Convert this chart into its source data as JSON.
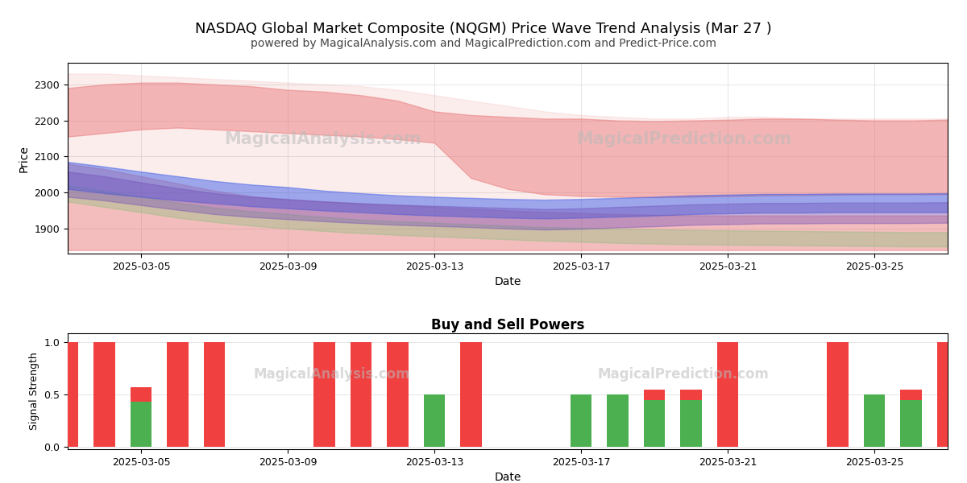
{
  "title": "NASDAQ Global Market Composite (NQGM) Price Wave Trend Analysis (Mar 27 )",
  "subtitle": "powered by MagicalAnalysis.com and MagicalPrediction.com and Predict-Price.com",
  "title_fontsize": 13,
  "subtitle_fontsize": 10,
  "xlabel": "Date",
  "ylabel_top": "Price",
  "ylabel_bottom": "Signal Strength",
  "bottom_title": "Buy and Sell Powers",
  "date_start": "2025-03-03",
  "n_days": 25,
  "price_ylim": [
    1830,
    2360
  ],
  "price_yticks": [
    1900,
    2000,
    2100,
    2200,
    2300
  ],
  "signal_ylim": [
    -0.02,
    1.08
  ],
  "signal_yticks": [
    0.0,
    0.5,
    1.0
  ],
  "background_color": "#ffffff",
  "watermark_color": "#bbbbbb",
  "watermark_alpha": 0.5,
  "red_outer_upper": [
    2330,
    2330,
    2325,
    2320,
    2315,
    2310,
    2305,
    2300,
    2295,
    2285,
    2270,
    2255,
    2240,
    2225,
    2215,
    2210,
    2205,
    2205,
    2210,
    2210,
    2205,
    2205,
    2205,
    2205,
    2205
  ],
  "red_outer_lower": [
    1840,
    1840,
    1840,
    1840,
    1840,
    1840,
    1840,
    1840,
    1840,
    1840,
    1840,
    1840,
    1840,
    1840,
    1840,
    1840,
    1840,
    1840,
    1840,
    1840,
    1840,
    1840,
    1840,
    1840,
    1840
  ],
  "red_upper_band_top": [
    2290,
    2300,
    2305,
    2305,
    2300,
    2295,
    2285,
    2280,
    2270,
    2255,
    2225,
    2215,
    2210,
    2205,
    2205,
    2200,
    2198,
    2200,
    2202,
    2205,
    2205,
    2202,
    2200,
    2200,
    2202
  ],
  "red_upper_band_bot": [
    2155,
    2165,
    2175,
    2180,
    2175,
    2170,
    2165,
    2160,
    2155,
    2148,
    2138,
    2040,
    2010,
    1995,
    1990,
    1988,
    1987,
    1988,
    1990,
    1992,
    1993,
    1994,
    1995,
    1995,
    1995
  ],
  "red_lower_band_top": [
    2080,
    2065,
    2045,
    2025,
    2005,
    1990,
    1980,
    1975,
    1970,
    1965,
    1960,
    1955,
    1950,
    1946,
    1943,
    1940,
    1938,
    1937,
    1936,
    1936,
    1936,
    1936,
    1936,
    1936,
    1936
  ],
  "red_lower_band_bot": [
    1840,
    1840,
    1840,
    1840,
    1840,
    1840,
    1840,
    1840,
    1840,
    1840,
    1840,
    1840,
    1840,
    1840,
    1840,
    1840,
    1840,
    1840,
    1840,
    1840,
    1840,
    1840,
    1840,
    1840,
    1840
  ],
  "blue_upper": [
    2085,
    2072,
    2058,
    2045,
    2032,
    2022,
    2015,
    2005,
    1998,
    1992,
    1988,
    1985,
    1982,
    1980,
    1982,
    1985,
    1988,
    1992,
    1994,
    1996,
    1996,
    1997,
    1997,
    1997,
    1998
  ],
  "blue_lower": [
    2010,
    1998,
    1988,
    1978,
    1970,
    1962,
    1956,
    1950,
    1945,
    1940,
    1936,
    1933,
    1930,
    1928,
    1930,
    1933,
    1936,
    1940,
    1942,
    1944,
    1944,
    1945,
    1945,
    1945,
    1945
  ],
  "purple_upper": [
    2058,
    2045,
    2028,
    2012,
    1998,
    1988,
    1982,
    1975,
    1970,
    1966,
    1963,
    1960,
    1957,
    1954,
    1956,
    1960,
    1963,
    1967,
    1969,
    1971,
    1971,
    1972,
    1972,
    1972,
    1973
  ],
  "purple_lower": [
    1988,
    1978,
    1965,
    1952,
    1940,
    1932,
    1926,
    1920,
    1915,
    1910,
    1907,
    1904,
    1900,
    1897,
    1899,
    1903,
    1906,
    1910,
    1912,
    1914,
    1914,
    1915,
    1915,
    1915,
    1916
  ],
  "green_upper": [
    2020,
    2005,
    1988,
    1972,
    1958,
    1948,
    1940,
    1932,
    1925,
    1920,
    1916,
    1912,
    1908,
    1904,
    1902,
    1900,
    1898,
    1896,
    1895,
    1894,
    1893,
    1892,
    1891,
    1890,
    1890
  ],
  "green_lower": [
    1975,
    1960,
    1945,
    1930,
    1918,
    1908,
    1900,
    1893,
    1887,
    1882,
    1878,
    1874,
    1870,
    1866,
    1863,
    1860,
    1858,
    1856,
    1855,
    1854,
    1853,
    1852,
    1851,
    1850,
    1850
  ],
  "bar_dates": [
    "2025-03-03",
    "2025-03-04",
    "2025-03-05",
    "2025-03-06",
    "2025-03-07",
    "2025-03-10",
    "2025-03-11",
    "2025-03-12",
    "2025-03-13",
    "2025-03-14",
    "2025-03-17",
    "2025-03-18",
    "2025-03-19",
    "2025-03-20",
    "2025-03-21",
    "2025-03-24",
    "2025-03-25",
    "2025-03-26",
    "2025-03-27"
  ],
  "bar_sell": [
    1.0,
    1.0,
    0.57,
    1.0,
    1.0,
    1.0,
    1.0,
    1.0,
    0.5,
    1.0,
    0.5,
    0.5,
    0.55,
    0.55,
    1.0,
    1.0,
    0.5,
    0.55,
    1.0
  ],
  "bar_buy": [
    0.0,
    0.0,
    0.43,
    0.0,
    0.0,
    0.0,
    0.0,
    0.0,
    0.5,
    0.0,
    0.5,
    0.5,
    0.45,
    0.45,
    0.0,
    0.0,
    0.5,
    0.45,
    0.0
  ],
  "sell_color": "#f04040",
  "buy_color": "#4caf50",
  "red_color": "#e87070",
  "blue_color": "#4060e8",
  "purple_color": "#7050b8",
  "green_color": "#70c070",
  "grid_color": "#e0e0e0"
}
